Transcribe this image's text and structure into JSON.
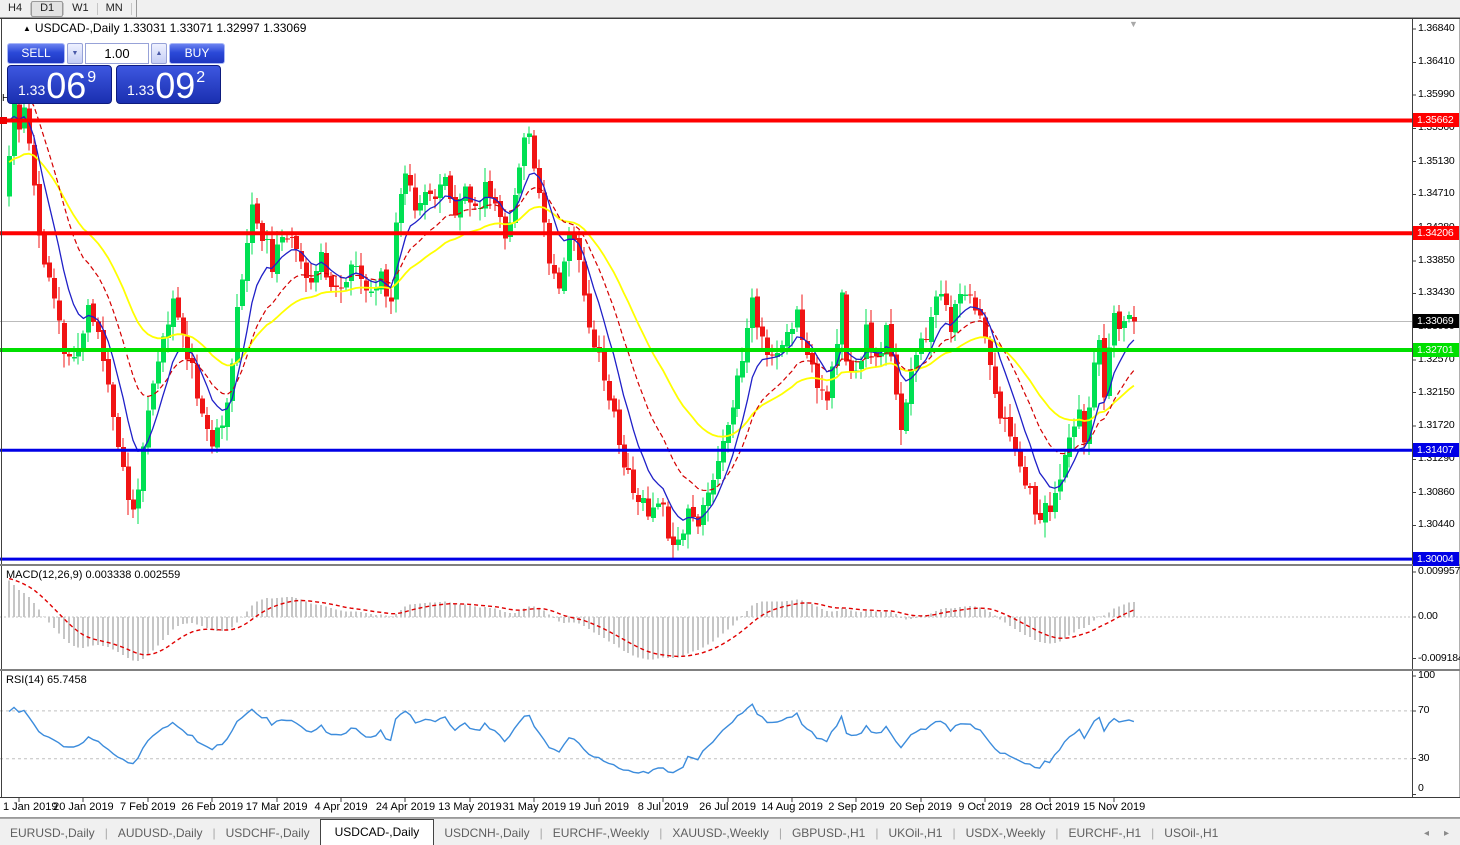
{
  "window_toolbar": {
    "timeframes": [
      {
        "label": "H4",
        "active": false
      },
      {
        "label": "D1",
        "active": true
      },
      {
        "label": "W1",
        "active": false
      },
      {
        "label": "MN",
        "active": false
      }
    ]
  },
  "chart_title": {
    "collapse_icon": "▲",
    "text": "USDCAD-,Daily  1.33031 1.33071 1.32997 1.33069"
  },
  "trade_panel": {
    "sell_label": "SELL",
    "buy_label": "BUY",
    "volume": "1.00",
    "spinner_down": "▼",
    "spinner_up": "▲",
    "sell_price": {
      "prefix": "1.33",
      "big": "06",
      "sup": "9"
    },
    "buy_price": {
      "prefix": "1.33",
      "big": "09",
      "sup": "2"
    }
  },
  "markers": {
    "high_marker": "H",
    "shift_arrow": "▼"
  },
  "chart_data": {
    "type": "candlestick_with_indicators",
    "symbol": "USDCAD-",
    "timeframe": "Daily",
    "ohlc_current": {
      "open": 1.33031,
      "high": 1.33071,
      "low": 1.32997,
      "close": 1.33069
    },
    "first_day": -2,
    "last_day": 225,
    "noise_seed": 11,
    "candle_up_color": "#00E053",
    "candle_down_color": "#F01414",
    "price_waypoints": [
      [
        -2,
        1.352
      ],
      [
        -1,
        1.3578
      ],
      [
        0,
        1.3552
      ],
      [
        1,
        1.3585
      ],
      [
        2,
        1.3545
      ],
      [
        3,
        1.348
      ],
      [
        4,
        1.342
      ],
      [
        5,
        1.3385
      ],
      [
        7,
        1.333
      ],
      [
        9,
        1.3268
      ],
      [
        11,
        1.3255
      ],
      [
        13,
        1.3292
      ],
      [
        14,
        1.333
      ],
      [
        16,
        1.329
      ],
      [
        18,
        1.3228
      ],
      [
        20,
        1.315
      ],
      [
        22,
        1.3075
      ],
      [
        23,
        1.3062
      ],
      [
        25,
        1.314
      ],
      [
        27,
        1.322
      ],
      [
        29,
        1.3282
      ],
      [
        31,
        1.333
      ],
      [
        33,
        1.329
      ],
      [
        35,
        1.3248
      ],
      [
        37,
        1.319
      ],
      [
        39,
        1.3148
      ],
      [
        41,
        1.3168
      ],
      [
        43,
        1.3262
      ],
      [
        45,
        1.3372
      ],
      [
        47,
        1.3452
      ],
      [
        49,
        1.342
      ],
      [
        51,
        1.3382
      ],
      [
        53,
        1.3405
      ],
      [
        55,
        1.3425
      ],
      [
        57,
        1.339
      ],
      [
        59,
        1.3355
      ],
      [
        61,
        1.3385
      ],
      [
        63,
        1.3362
      ],
      [
        65,
        1.3345
      ],
      [
        67,
        1.338
      ],
      [
        69,
        1.3356
      ],
      [
        71,
        1.334
      ],
      [
        73,
        1.3365
      ],
      [
        75,
        1.3338
      ],
      [
        76,
        1.3432
      ],
      [
        78,
        1.3508
      ],
      [
        80,
        1.3455
      ],
      [
        82,
        1.3485
      ],
      [
        84,
        1.3462
      ],
      [
        86,
        1.349
      ],
      [
        88,
        1.3455
      ],
      [
        90,
        1.3482
      ],
      [
        92,
        1.3445
      ],
      [
        94,
        1.348
      ],
      [
        96,
        1.3462
      ],
      [
        98,
        1.3425
      ],
      [
        100,
        1.3458
      ],
      [
        101,
        1.3518
      ],
      [
        103,
        1.3552
      ],
      [
        105,
        1.3478
      ],
      [
        107,
        1.339
      ],
      [
        109,
        1.3358
      ],
      [
        111,
        1.3425
      ],
      [
        113,
        1.3388
      ],
      [
        115,
        1.331
      ],
      [
        117,
        1.3262
      ],
      [
        119,
        1.3215
      ],
      [
        121,
        1.315
      ],
      [
        123,
        1.3105
      ],
      [
        125,
        1.308
      ],
      [
        127,
        1.3058
      ],
      [
        129,
        1.3085
      ],
      [
        131,
        1.304
      ],
      [
        133,
        1.3022
      ],
      [
        135,
        1.3068
      ],
      [
        137,
        1.3042
      ],
      [
        139,
        1.3088
      ],
      [
        141,
        1.3132
      ],
      [
        143,
        1.318
      ],
      [
        145,
        1.3228
      ],
      [
        146,
        1.3262
      ],
      [
        148,
        1.3332
      ],
      [
        150,
        1.3285
      ],
      [
        153,
        1.3258
      ],
      [
        155,
        1.3292
      ],
      [
        157,
        1.3318
      ],
      [
        159,
        1.3272
      ],
      [
        161,
        1.3232
      ],
      [
        163,
        1.3212
      ],
      [
        165,
        1.3272
      ],
      [
        166,
        1.3335
      ],
      [
        167,
        1.3252
      ],
      [
        169,
        1.3242
      ],
      [
        171,
        1.3292
      ],
      [
        173,
        1.3252
      ],
      [
        175,
        1.3292
      ],
      [
        177,
        1.3222
      ],
      [
        178,
        1.3172
      ],
      [
        180,
        1.3242
      ],
      [
        182,
        1.3272
      ],
      [
        184,
        1.3312
      ],
      [
        186,
        1.3342
      ],
      [
        188,
        1.3302
      ],
      [
        190,
        1.3332
      ],
      [
        192,
        1.3348
      ],
      [
        194,
        1.3312
      ],
      [
        196,
        1.3252
      ],
      [
        198,
        1.3192
      ],
      [
        200,
        1.3152
      ],
      [
        202,
        1.3132
      ],
      [
        204,
        1.3082
      ],
      [
        206,
        1.3052
      ],
      [
        208,
        1.3068
      ],
      [
        210,
        1.3102
      ],
      [
        212,
        1.3152
      ],
      [
        214,
        1.3182
      ],
      [
        215,
        1.3162
      ],
      [
        216,
        1.3202
      ],
      [
        217,
        1.3242
      ],
      [
        218,
        1.3272
      ],
      [
        219,
        1.3212
      ],
      [
        220,
        1.3272
      ],
      [
        221,
        1.3305
      ],
      [
        222,
        1.3292
      ],
      [
        223,
        1.3312
      ],
      [
        224,
        1.3322
      ],
      [
        225,
        1.33069
      ]
    ],
    "price_ticks": [
      "1.36840",
      "1.36410",
      "1.35990",
      "1.35560",
      "1.35130",
      "1.34710",
      "1.34280",
      "1.33850",
      "1.33430",
      "1.33000",
      "1.32570",
      "1.32150",
      "1.31720",
      "1.31290",
      "1.30860",
      "1.30440"
    ],
    "hlines": [
      {
        "price": 1.35662,
        "label": "1.35662",
        "color": "#FF0000",
        "width": 4,
        "text_color": "#fff"
      },
      {
        "price": 1.34206,
        "label": "1.34206",
        "color": "#FF0000",
        "width": 4,
        "text_color": "#fff"
      },
      {
        "price": 1.32701,
        "label": "1.32701",
        "color": "#00DF00",
        "width": 4,
        "text_color": "#fff"
      },
      {
        "price": 1.31407,
        "label": "1.31407",
        "color": "#0000E6",
        "width": 3,
        "text_color": "#fff"
      },
      {
        "price": 1.30004,
        "label": "1.30004",
        "color": "#0000E6",
        "width": 3,
        "text_color": "#fff"
      }
    ],
    "current_price": {
      "value": 1.33069,
      "label": "1.33069",
      "line_color": "#BBBBBB",
      "label_bg": "#000000"
    },
    "date_labels": [
      {
        "label": "1 Jan 2019",
        "day": 0
      },
      {
        "label": "20 Jan 2019",
        "day": 13
      },
      {
        "label": "7 Feb 2019",
        "day": 26
      },
      {
        "label": "26 Feb 2019",
        "day": 39
      },
      {
        "label": "17 Mar 2019",
        "day": 52
      },
      {
        "label": "4 Apr 2019",
        "day": 65
      },
      {
        "label": "24 Apr 2019",
        "day": 78
      },
      {
        "label": "13 May 2019",
        "day": 91
      },
      {
        "label": "31 May 2019",
        "day": 104
      },
      {
        "label": "19 Jun 2019",
        "day": 117
      },
      {
        "label": "8 Jul 2019",
        "day": 130
      },
      {
        "label": "26 Jul 2019",
        "day": 143
      },
      {
        "label": "14 Aug 2019",
        "day": 156
      },
      {
        "label": "2 Sep 2019",
        "day": 169
      },
      {
        "label": "20 Sep 2019",
        "day": 182
      },
      {
        "label": "9 Oct 2019",
        "day": 195
      },
      {
        "label": "28 Oct 2019",
        "day": 208
      },
      {
        "label": "15 Nov 2019",
        "day": 221
      }
    ],
    "moving_averages": [
      {
        "name": "ma-slow-yellow",
        "period": 34,
        "seed": 1.3512,
        "color": "#FFFF00",
        "dash": "",
        "width": 1.8
      },
      {
        "name": "ma-medium-red",
        "period": 17,
        "seed": 1.363,
        "color": "#D40000",
        "dash": "5 3",
        "width": 1.2
      },
      {
        "name": "ma-fast-blue",
        "period": 8,
        "seed": 1.358,
        "color": "#2020C8",
        "dash": "",
        "width": 1.3
      }
    ],
    "indicators": {
      "macd": {
        "label": "MACD(12,26,9) 0.003338 0.002559",
        "params": [
          12,
          26,
          9
        ],
        "current_macd": 0.003338,
        "current_signal": 0.002559,
        "axis_labels": [
          {
            "value": 0.009957,
            "label": "0.009957"
          },
          {
            "value": 0,
            "label": "0.00"
          },
          {
            "value": -0.009184,
            "label": "-0.009184"
          }
        ],
        "ema_fast_seed": 1.365,
        "ema_slow_seed": 1.3552,
        "signal_seed": 0.0086,
        "bar_color": "#C6C6C6",
        "signal_color": "#E00000"
      },
      "rsi": {
        "label": "RSI(14) 65.7458",
        "period": 14,
        "current": 65.7458,
        "axis_labels": [
          100,
          70,
          30,
          0
        ],
        "levels": [
          70,
          30
        ],
        "color": "#3C8CDC",
        "seed_gain": 0.00285,
        "seed_loss": 0.00125
      }
    }
  },
  "tabs": [
    {
      "label": "EURUSD-,Daily",
      "active": false
    },
    {
      "label": "AUDUSD-,Daily",
      "active": false
    },
    {
      "label": "USDCHF-,Daily",
      "active": false
    },
    {
      "label": "USDCAD-,Daily",
      "active": true
    },
    {
      "label": "USDCNH-,Daily",
      "active": false
    },
    {
      "label": "EURCHF-,Weekly",
      "active": false
    },
    {
      "label": "XAUUSD-,Weekly",
      "active": false
    },
    {
      "label": "GBPUSD-,H1",
      "active": false
    },
    {
      "label": "UKOil-,H1",
      "active": false
    },
    {
      "label": "USDX-,Weekly",
      "active": false
    },
    {
      "label": "EURCHF-,H1",
      "active": false
    },
    {
      "label": "USOil-,H1",
      "active": false
    }
  ],
  "tab_scroll": {
    "left": "◂",
    "right": "▸"
  }
}
